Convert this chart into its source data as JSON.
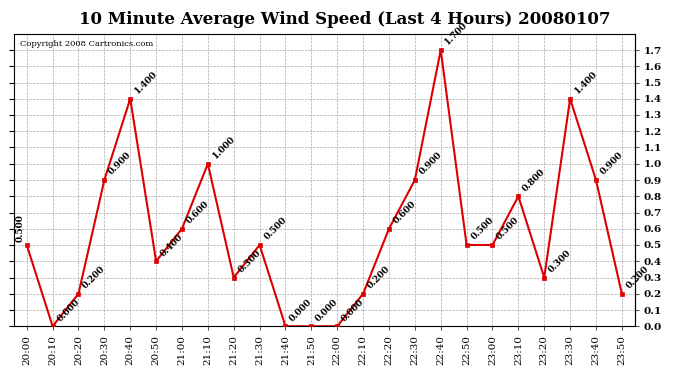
{
  "title": "10 Minute Average Wind Speed (Last 4 Hours) 20080107",
  "copyright": "Copyright 2008 Cartronics.com",
  "x_labels": [
    "20:00",
    "20:10",
    "20:20",
    "20:30",
    "20:40",
    "20:50",
    "21:00",
    "21:10",
    "21:20",
    "21:30",
    "21:40",
    "21:50",
    "22:00",
    "22:10",
    "22:20",
    "22:30",
    "22:40",
    "22:50",
    "23:00",
    "23:10",
    "23:20",
    "23:30",
    "23:40",
    "23:50"
  ],
  "y_values": [
    0.5,
    0.0,
    0.2,
    0.9,
    1.4,
    0.4,
    0.6,
    1.0,
    0.3,
    0.5,
    0.0,
    0.0,
    0.0,
    0.2,
    0.6,
    0.9,
    1.7,
    0.5,
    0.5,
    0.8,
    0.3,
    1.4,
    0.9,
    0.2
  ],
  "y_labels": [
    "0.500",
    "0.000",
    "0.200",
    "0.900",
    "1.400",
    "0.400",
    "0.600",
    "1.000",
    "0.300",
    "0.500",
    "0.000",
    "0.000",
    "0.000",
    "0.200",
    "0.600",
    "0.900",
    "1.700",
    "0.500",
    "0.500",
    "0.800",
    "0.300",
    "1.400",
    "0.900",
    "0.200"
  ],
  "line_color": "#dd0000",
  "marker_color": "#dd0000",
  "background_color": "#ffffff",
  "grid_color": "#aaaaaa",
  "title_fontsize": 12,
  "label_fontsize": 6.5,
  "tick_fontsize": 7.5,
  "ylim": [
    0.0,
    1.8
  ],
  "yticks_right": [
    0.0,
    0.1,
    0.2,
    0.3,
    0.4,
    0.5,
    0.6,
    0.7,
    0.8,
    0.9,
    1.0,
    1.1,
    1.2,
    1.3,
    1.4,
    1.5,
    1.6,
    1.7
  ],
  "ytick_labels_right": [
    "0.0",
    "0.1",
    "0.2",
    "0.3",
    "0.4",
    "0.5",
    "0.6",
    "0.7",
    "0.8",
    "0.9",
    "1.0",
    "1.1",
    "1.2",
    "1.3",
    "1.4",
    "1.5",
    "1.6",
    "1.7"
  ]
}
